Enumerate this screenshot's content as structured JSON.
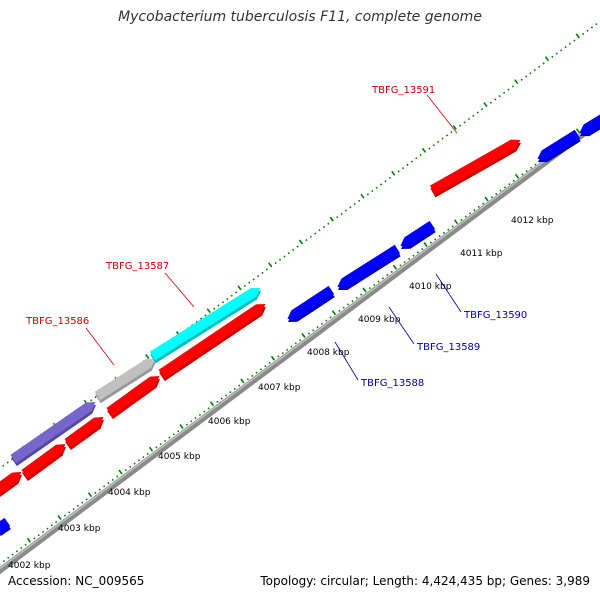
{
  "title": "Mycobacterium tuberculosis F11, complete genome",
  "footer": {
    "accession": "Accession: NC_009565",
    "summary": "Topology: circular; Length: 4,424,435 bp; Genes: 3,989"
  },
  "colors": {
    "forward_gene": "#ff0000",
    "reverse_gene": "#0000ff",
    "highlight_cyan": "#00ffff",
    "highlight_gray": "#c0c0c0",
    "highlight_purple": "#7766cc",
    "backbone": "#808080",
    "ruler": "#008000",
    "forward_label": "#cc0000",
    "reverse_label": "#000099"
  },
  "ticks": [
    {
      "label": "4002 kbp"
    },
    {
      "label": "4003 kbp"
    },
    {
      "label": "4004 kbp"
    },
    {
      "label": "4005 kbp"
    },
    {
      "label": "4006 kbp"
    },
    {
      "label": "4007 kbp"
    },
    {
      "label": "4008 kbp"
    },
    {
      "label": "4009 kbp"
    },
    {
      "label": "4010 kbp"
    },
    {
      "label": "4011 kbp"
    },
    {
      "label": "4012 kbp"
    }
  ],
  "gene_labels": [
    {
      "name": "TBFG_13591",
      "strand": "forward"
    },
    {
      "name": "TBFG_13587",
      "strand": "forward"
    },
    {
      "name": "TBFG_13586",
      "strand": "forward"
    },
    {
      "name": "TBFG_13590",
      "strand": "reverse"
    },
    {
      "name": "TBFG_13589",
      "strand": "reverse"
    },
    {
      "name": "TBFG_13588",
      "strand": "reverse"
    }
  ]
}
